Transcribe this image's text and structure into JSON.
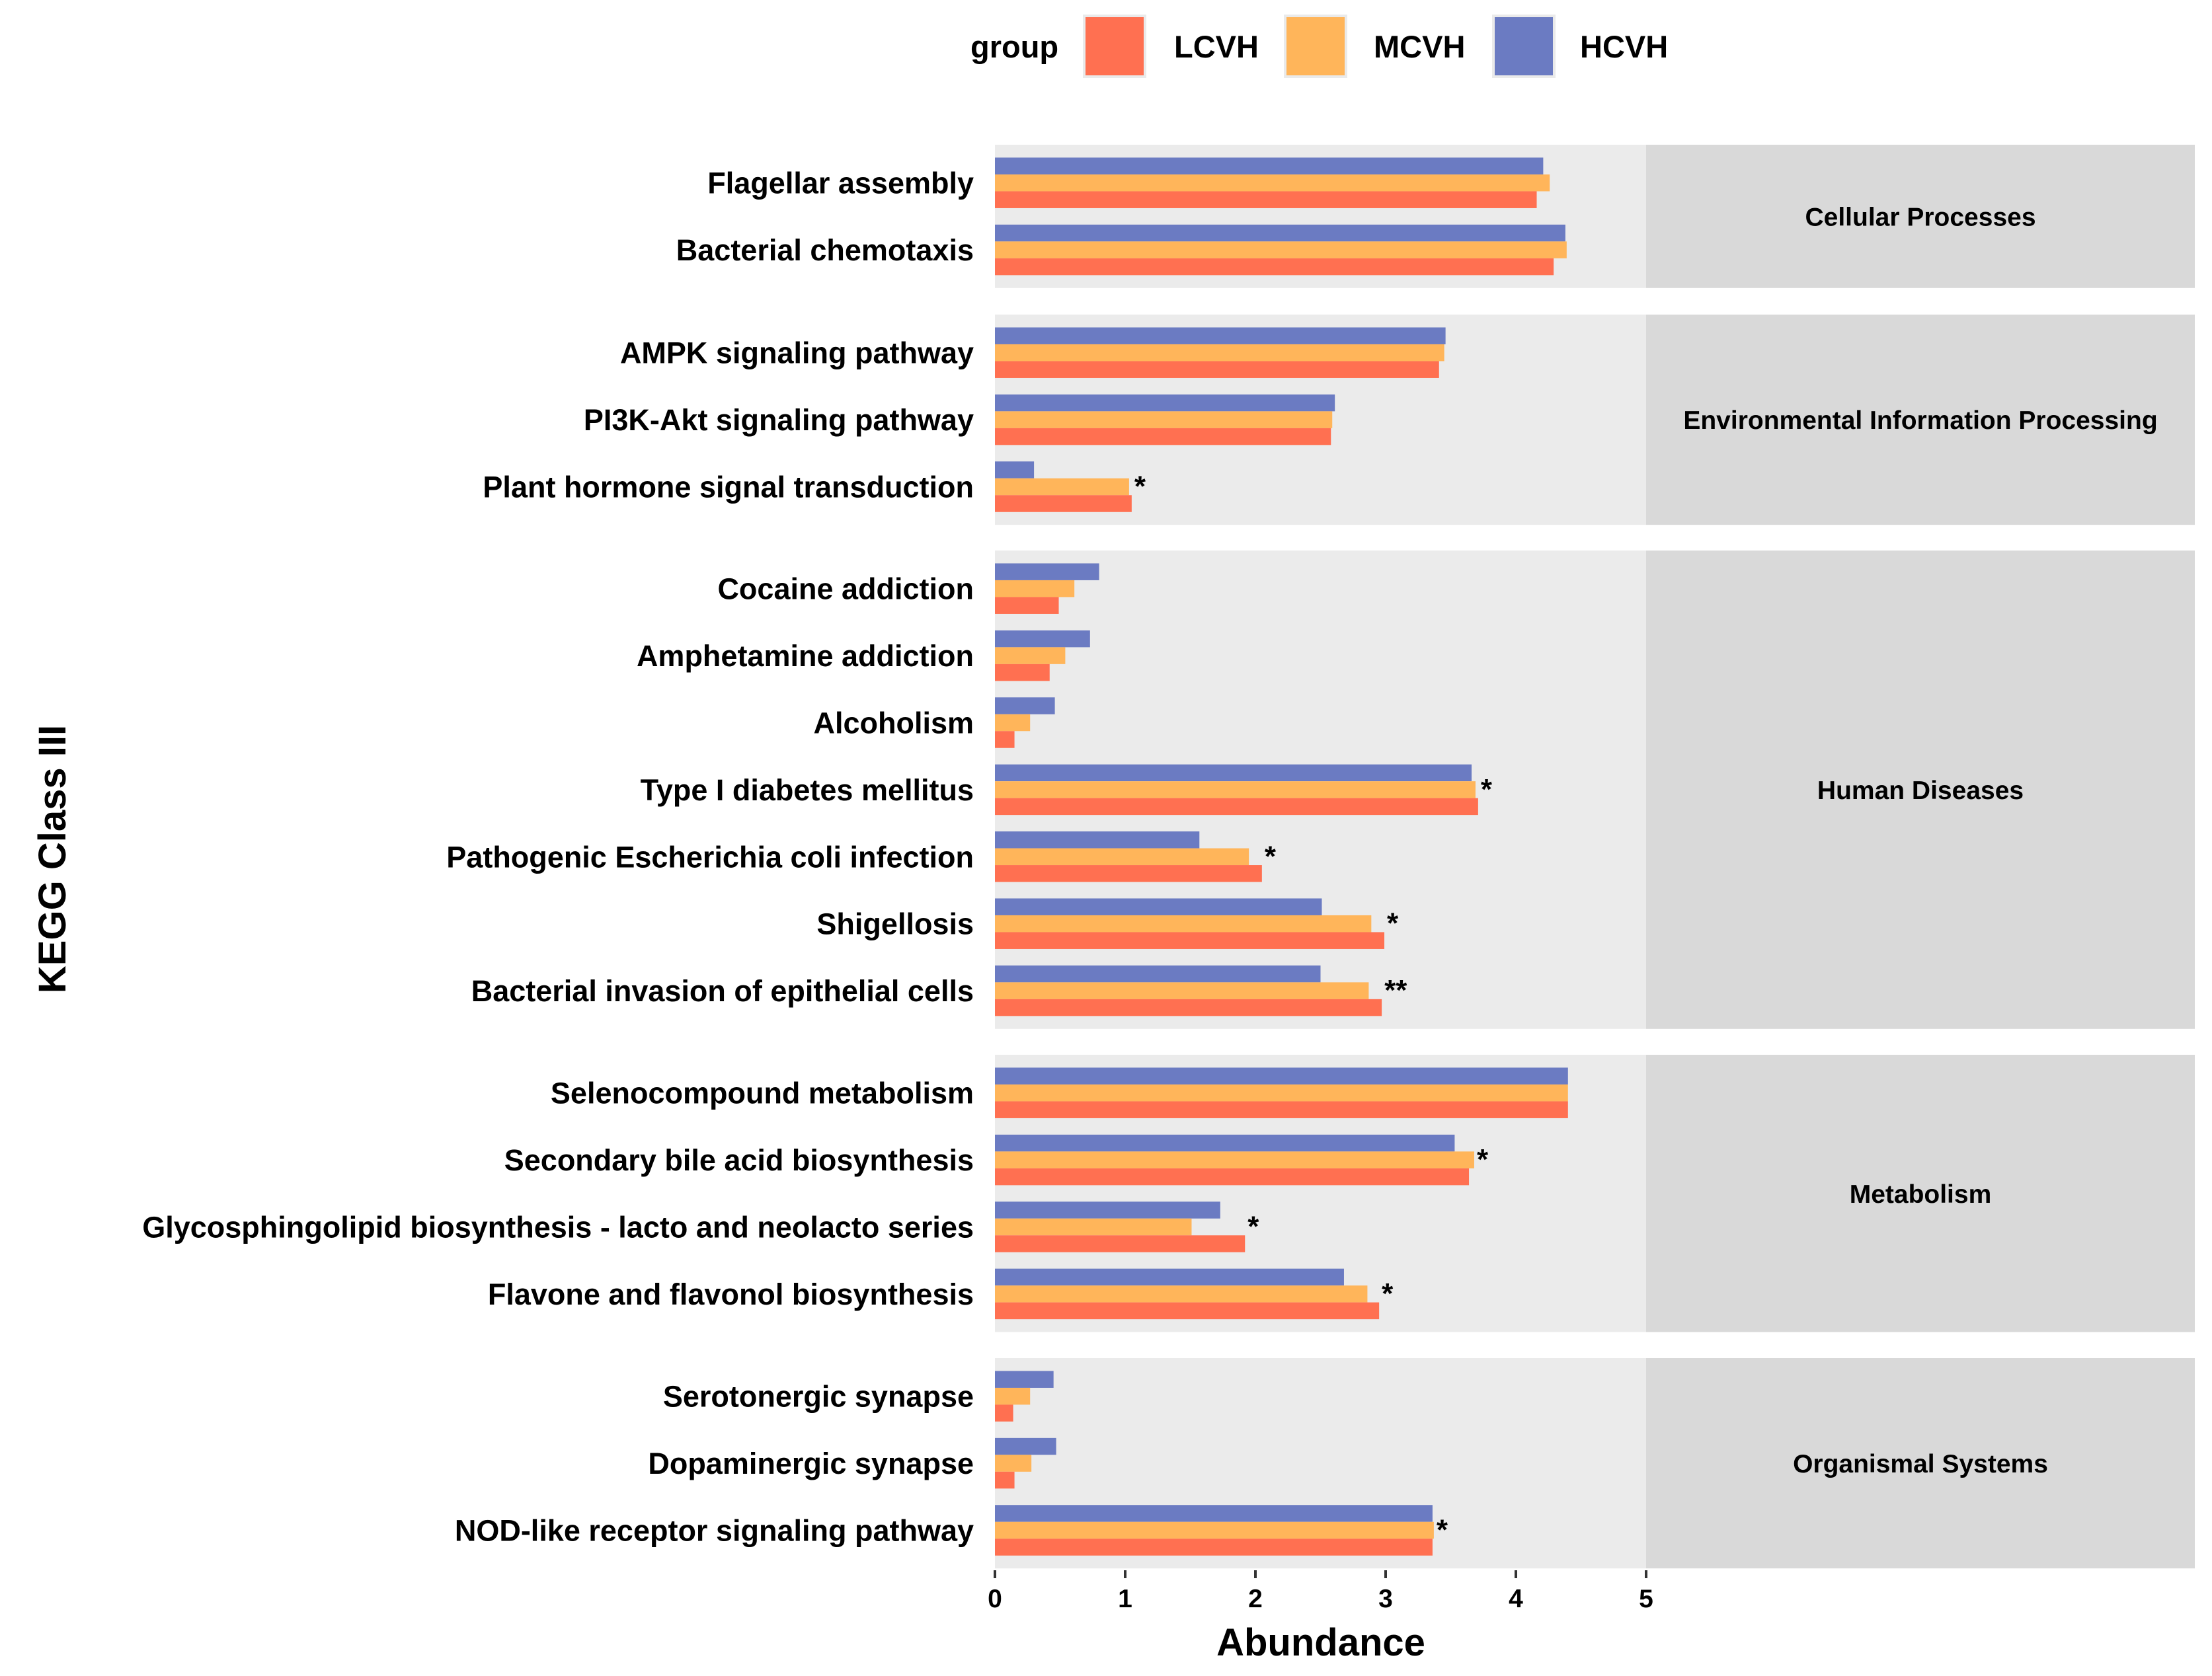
{
  "chart_data": {
    "type": "bar",
    "orientation": "horizontal",
    "xlabel": "Abundance",
    "ylabel": "KEGG Class III",
    "xlim": [
      0,
      5
    ],
    "xticks": [
      0,
      1,
      2,
      3,
      4,
      5
    ],
    "legend": {
      "title": "group",
      "position": "top",
      "entries": [
        {
          "name": "LCVH",
          "color": "#FF7051"
        },
        {
          "name": "MCVH",
          "color": "#FFB55A"
        },
        {
          "name": "HCVH",
          "color": "#6B7BC2"
        }
      ]
    },
    "series_order_top_to_bottom": [
      "HCVH",
      "MCVH",
      "LCVH"
    ],
    "facets": [
      {
        "name": "Cellular Processes",
        "pathways": [
          {
            "label": "Flagellar assembly",
            "HCVH": 4.21,
            "MCVH": 4.26,
            "LCVH": 4.16,
            "sig": ""
          },
          {
            "label": "Bacterial chemotaxis",
            "HCVH": 4.38,
            "MCVH": 4.39,
            "LCVH": 4.29,
            "sig": ""
          }
        ]
      },
      {
        "name": "Environmental Information Processing",
        "pathways": [
          {
            "label": "AMPK signaling pathway",
            "HCVH": 3.46,
            "MCVH": 3.45,
            "LCVH": 3.41,
            "sig": ""
          },
          {
            "label": "PI3K-Akt signaling pathway",
            "HCVH": 2.61,
            "MCVH": 2.59,
            "LCVH": 2.58,
            "sig": ""
          },
          {
            "label": "Plant hormone signal transduction",
            "HCVH": 0.3,
            "MCVH": 1.03,
            "LCVH": 1.05,
            "sig": "*"
          }
        ]
      },
      {
        "name": "Human Diseases",
        "pathways": [
          {
            "label": "Cocaine addiction",
            "HCVH": 0.8,
            "MCVH": 0.61,
            "LCVH": 0.49,
            "sig": ""
          },
          {
            "label": "Amphetamine addiction",
            "HCVH": 0.73,
            "MCVH": 0.54,
            "LCVH": 0.42,
            "sig": ""
          },
          {
            "label": "Alcoholism",
            "HCVH": 0.46,
            "MCVH": 0.27,
            "LCVH": 0.15,
            "sig": ""
          },
          {
            "label": "Type I diabetes mellitus",
            "HCVH": 3.66,
            "MCVH": 3.69,
            "LCVH": 3.71,
            "sig": "*"
          },
          {
            "label": "Pathogenic Escherichia coli infection",
            "HCVH": 1.57,
            "MCVH": 1.95,
            "LCVH": 2.05,
            "sig": "*"
          },
          {
            "label": "Shigellosis",
            "HCVH": 2.51,
            "MCVH": 2.89,
            "LCVH": 2.99,
            "sig": "*"
          },
          {
            "label": "Bacterial invasion of epithelial cells",
            "HCVH": 2.5,
            "MCVH": 2.87,
            "LCVH": 2.97,
            "sig": "**"
          }
        ]
      },
      {
        "name": "Metabolism",
        "pathways": [
          {
            "label": "Selenocompound metabolism",
            "HCVH": 4.4,
            "MCVH": 4.4,
            "LCVH": 4.4,
            "sig": ""
          },
          {
            "label": "Secondary bile acid biosynthesis",
            "HCVH": 3.53,
            "MCVH": 3.68,
            "LCVH": 3.64,
            "sig": "*"
          },
          {
            "label": "Glycosphingolipid biosynthesis - lacto and neolacto series",
            "HCVH": 1.73,
            "MCVH": 1.51,
            "LCVH": 1.92,
            "sig": "*"
          },
          {
            "label": "Flavone and flavonol biosynthesis",
            "HCVH": 2.68,
            "MCVH": 2.86,
            "LCVH": 2.95,
            "sig": "*"
          }
        ]
      },
      {
        "name": "Organismal Systems",
        "pathways": [
          {
            "label": "Serotonergic synapse",
            "HCVH": 0.45,
            "MCVH": 0.27,
            "LCVH": 0.14,
            "sig": ""
          },
          {
            "label": "Dopaminergic synapse",
            "HCVH": 0.47,
            "MCVH": 0.28,
            "LCVH": 0.15,
            "sig": ""
          },
          {
            "label": "NOD-like receptor signaling pathway",
            "HCVH": 3.36,
            "MCVH": 3.37,
            "LCVH": 3.36,
            "sig": "*"
          }
        ]
      }
    ]
  }
}
